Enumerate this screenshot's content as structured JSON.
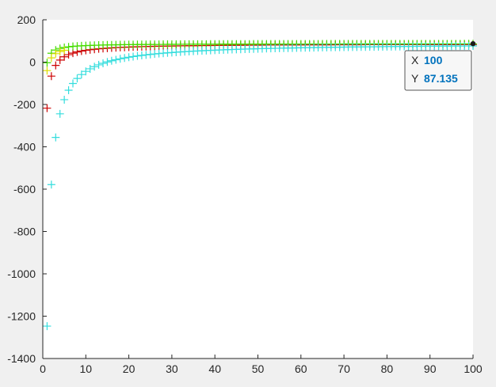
{
  "chart_data": {
    "type": "scatter",
    "title": "",
    "xlabel": "",
    "ylabel": "",
    "xlim": [
      0,
      100
    ],
    "ylim": [
      -1400,
      200
    ],
    "xticks": [
      0,
      10,
      20,
      30,
      40,
      50,
      60,
      70,
      80,
      90,
      100
    ],
    "yticks": [
      200,
      0,
      -200,
      -400,
      -600,
      -800,
      -1000,
      -1200,
      -1400
    ],
    "grid": false,
    "legend": "none",
    "marker": "+",
    "colors": {
      "background": "#f0f0f0",
      "axes": "#ffffff",
      "axis_line": "#262626",
      "tooltip_value": "#0072bd"
    },
    "series": [
      {
        "color": "#cc0000",
        "a": 86.5,
        "b": 300,
        "c": 8,
        "p": 1.0
      },
      {
        "color": "#44dd00",
        "a": 87.135,
        "b": 90,
        "c": 0,
        "p": 1.0
      },
      {
        "color": "#33dddd",
        "a": 90,
        "b": 1337,
        "c": 0,
        "p": 1.0
      },
      {
        "color": "#dddd00",
        "a": 80,
        "b": 120,
        "c": 0,
        "p": 1.0,
        "n": 5
      }
    ],
    "datatip": {
      "x_key": "X",
      "x_value": "100",
      "y_key": "Y",
      "y_value": "87.135",
      "point": [
        100,
        87.135
      ]
    }
  }
}
